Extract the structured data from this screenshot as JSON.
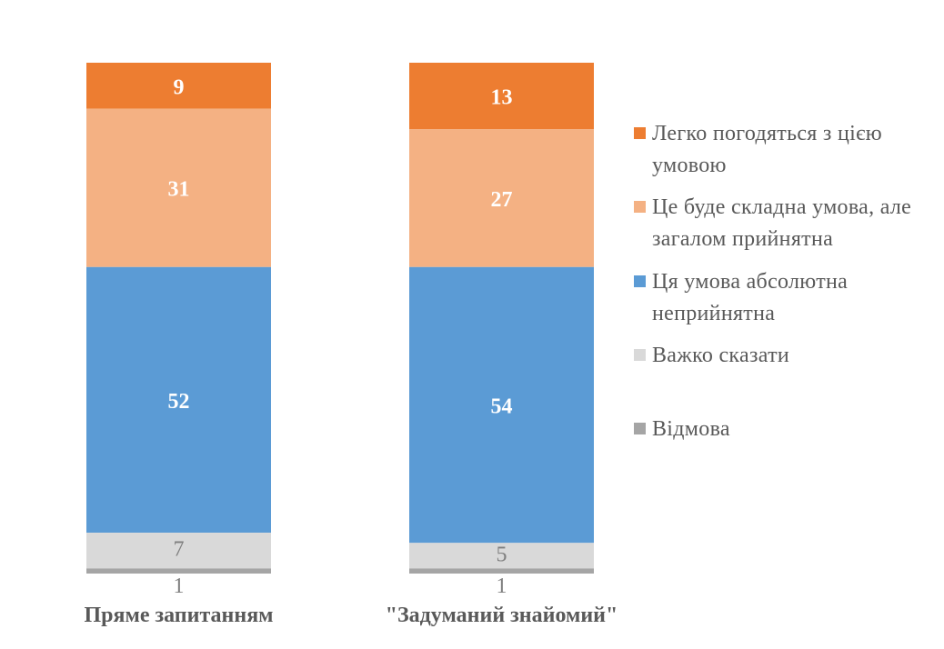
{
  "chart_data": {
    "type": "stacked-bar",
    "categories": [
      "Пряме запитанням",
      "\"Задуманий знайомий\""
    ],
    "series": [
      {
        "name": "Легко погодяться з цією умовою",
        "color": "#ED7D31",
        "values": [
          9,
          13
        ]
      },
      {
        "name": "Це буде складна умова, але загалом прийнятна",
        "color": "#F4B183",
        "values": [
          31,
          27
        ]
      },
      {
        "name": "Ця умова абсолютна неприйнятна",
        "color": "#5B9BD5",
        "values": [
          52,
          54
        ]
      },
      {
        "name": "Важко сказати",
        "color": "#D9D9D9",
        "values": [
          7,
          5
        ]
      },
      {
        "name": "Відмова",
        "color": "#A5A5A5",
        "values": [
          1,
          1
        ]
      }
    ],
    "legend_position": "right",
    "grid": false,
    "axes_visible": false,
    "ylim": [
      0,
      100
    ]
  }
}
